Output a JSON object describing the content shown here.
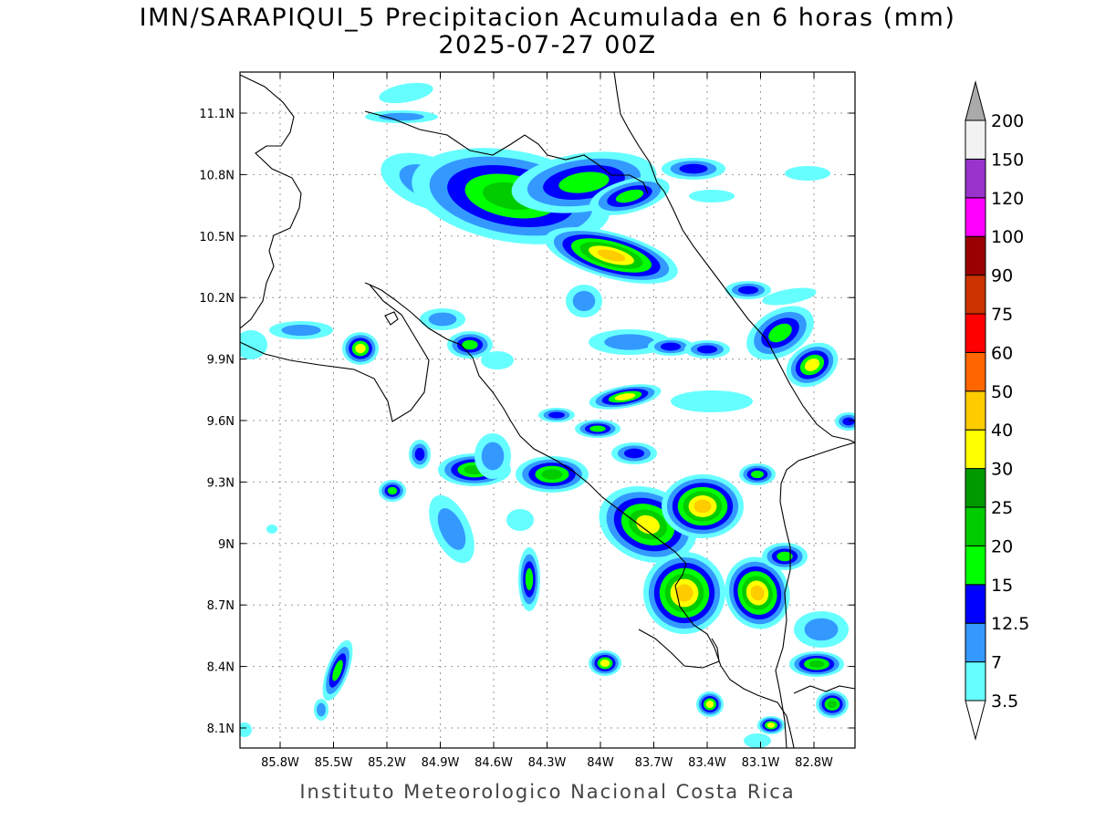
{
  "title": {
    "line1": "IMN/SARAPIQUI_5 Precipitacion Acumulada en 6 horas (mm)",
    "line2": "2025-07-27 00Z"
  },
  "footer": "Instituto Meteorologico Nacional Costa Rica",
  "axes": {
    "lon_ticks": [
      "85.8W",
      "85.5W",
      "85.2W",
      "84.9W",
      "84.6W",
      "84.3W",
      "84W",
      "83.7W",
      "83.4W",
      "83.1W",
      "82.8W"
    ],
    "lat_ticks": [
      "11.1N",
      "10.8N",
      "10.5N",
      "10.2N",
      "9.9N",
      "9.6N",
      "9.3N",
      "9N",
      "8.7N",
      "8.4N",
      "8.1N"
    ]
  },
  "colorbar": {
    "labels": [
      "3.5",
      "7",
      "12.5",
      "15",
      "20",
      "25",
      "30",
      "40",
      "50",
      "60",
      "75",
      "90",
      "100",
      "120",
      "150",
      "200"
    ],
    "colors": [
      "#66ffff",
      "#3399ff",
      "#0000ff",
      "#00ff00",
      "#00cc00",
      "#009900",
      "#ffff00",
      "#ffcc00",
      "#ff6600",
      "#ff0000",
      "#cc3300",
      "#990000",
      "#ff00ff",
      "#9933cc",
      "#f2f2f2",
      "#aaaaaa"
    ]
  },
  "precip_levels": {
    "c1": "#66ffff",
    "c2": "#3399ff",
    "c3": "#0000ff",
    "c4": "#00ff00",
    "c5": "#00cc00",
    "c6": "#009900",
    "c7": "#ffff00",
    "c8": "#ffcc00"
  }
}
